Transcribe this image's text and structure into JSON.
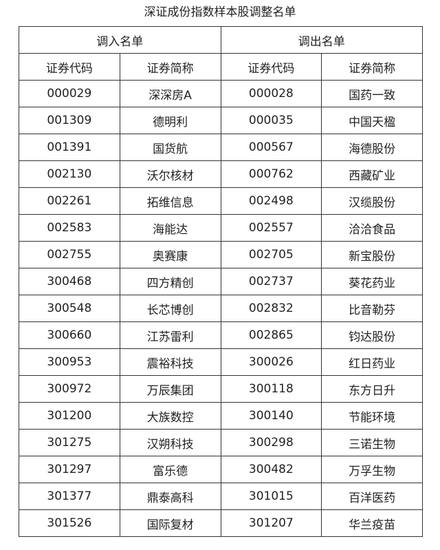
{
  "title": "深证成份指数样本股调整名单",
  "groups": [
    "调入名单",
    "调出名单"
  ],
  "columns": [
    "证券代码",
    "证券简称",
    "证券代码",
    "证券简称"
  ],
  "rows": [
    [
      "000029",
      "深深房A",
      "000028",
      "国药一致"
    ],
    [
      "001309",
      "德明利",
      "000035",
      "中国天楹"
    ],
    [
      "001391",
      "国货航",
      "000567",
      "海德股份"
    ],
    [
      "002130",
      "沃尔核材",
      "000762",
      "西藏矿业"
    ],
    [
      "002261",
      "拓维信息",
      "002498",
      "汉缆股份"
    ],
    [
      "002583",
      "海能达",
      "002557",
      "洽洽食品"
    ],
    [
      "002755",
      "奥赛康",
      "002705",
      "新宝股份"
    ],
    [
      "300468",
      "四方精创",
      "002737",
      "葵花药业"
    ],
    [
      "300548",
      "长芯博创",
      "002832",
      "比音勒芬"
    ],
    [
      "300660",
      "江苏雷利",
      "002865",
      "钧达股份"
    ],
    [
      "300953",
      "震裕科技",
      "300026",
      "红日药业"
    ],
    [
      "300972",
      "万辰集团",
      "300118",
      "东方日升"
    ],
    [
      "301200",
      "大族数控",
      "300140",
      "节能环境"
    ],
    [
      "301275",
      "汉朔科技",
      "300298",
      "三诺生物"
    ],
    [
      "301297",
      "富乐德",
      "300482",
      "万孚生物"
    ],
    [
      "301377",
      "鼎泰高科",
      "301015",
      "百洋医药"
    ],
    [
      "301526",
      "国际复材",
      "301207",
      "华兰疫苗"
    ]
  ]
}
